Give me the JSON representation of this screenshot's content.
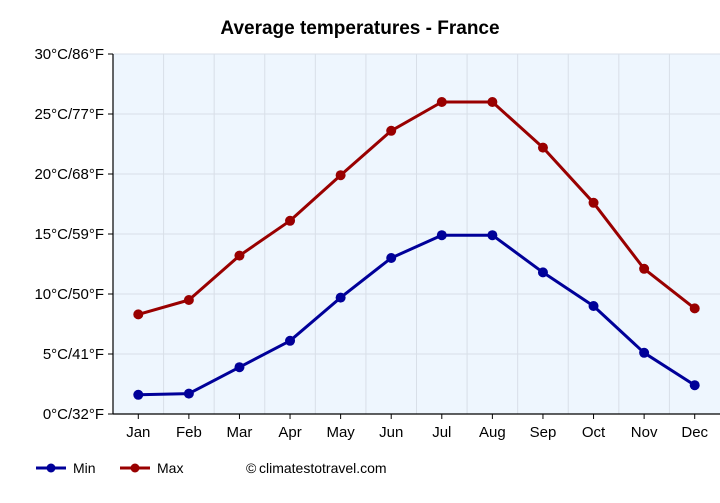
{
  "chart_data": {
    "type": "line",
    "title": "Average temperatures - France",
    "categories": [
      "Jan",
      "Feb",
      "Mar",
      "Apr",
      "May",
      "Jun",
      "Jul",
      "Aug",
      "Sep",
      "Oct",
      "Nov",
      "Dec"
    ],
    "y_ticks": [
      "0°C/32°F",
      "5°C/41°F",
      "10°C/50°F",
      "15°C/59°F",
      "20°C/68°F",
      "25°C/77°F",
      "30°C/86°F"
    ],
    "ylim": [
      0,
      30
    ],
    "grid": true,
    "legend_placement": "bottom-left",
    "series": [
      {
        "name": "Min",
        "color": "#000099",
        "values": [
          1.6,
          1.7,
          3.9,
          6.1,
          9.7,
          13.0,
          14.9,
          14.9,
          11.8,
          9.0,
          5.1,
          2.4
        ]
      },
      {
        "name": "Max",
        "color": "#990000",
        "values": [
          8.3,
          9.5,
          13.2,
          16.1,
          19.9,
          23.6,
          26.0,
          26.0,
          22.2,
          17.6,
          12.1,
          8.8
        ]
      }
    ],
    "plot_background": "#eef6fe",
    "grid_color": "#d8dfe8",
    "credit": "climatestotravel.com",
    "credit_symbol": "©"
  }
}
